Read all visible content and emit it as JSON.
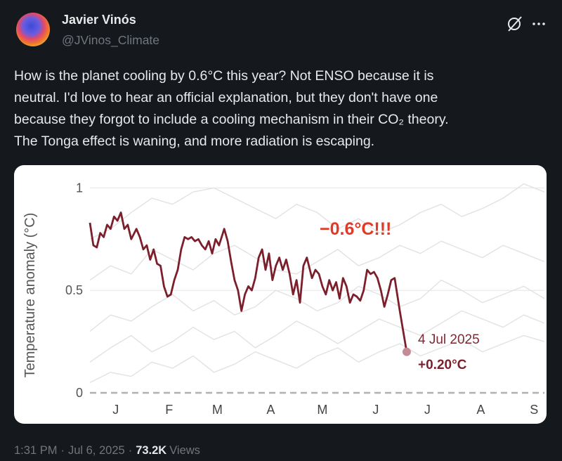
{
  "post": {
    "author_name": "Javier Vinós",
    "handle": "@JVinos_Climate",
    "text_lines": [
      "How is the planet cooling by 0.6°C this year? Not ENSO because it is",
      "neutral. I'd love to hear an official explanation, but they don't have one",
      "because they forgot to include a cooling mechanism in their CO₂ theory.",
      "The Tonga effect is waning, and more radiation is escaping."
    ],
    "time": "1:31 PM",
    "separator": "·",
    "date": "Jul 6, 2025",
    "views": "73.2K",
    "views_label": "Views"
  },
  "chart_data": {
    "type": "line",
    "y_label": "Temperature anomaly (°C)",
    "xlim": [
      1,
      265
    ],
    "xticks": [
      {
        "value": 16,
        "label": "J"
      },
      {
        "value": 47,
        "label": "F"
      },
      {
        "value": 75,
        "label": "M"
      },
      {
        "value": 106,
        "label": "A"
      },
      {
        "value": 136,
        "label": "M"
      },
      {
        "value": 167,
        "label": "J"
      },
      {
        "value": 197,
        "label": "J"
      },
      {
        "value": 228,
        "label": "A"
      },
      {
        "value": 259,
        "label": "S"
      }
    ],
    "ylim": [
      0,
      1.07
    ],
    "yticks": [
      0,
      0.5,
      1
    ],
    "grid": true,
    "annotations": [
      "−0.6°C!!!",
      "4 Jul 2025",
      "+0.20°C"
    ],
    "series": [
      {
        "color": "#e2e2e2",
        "x": [
          1,
          13,
          25,
          37,
          49,
          61,
          73,
          85,
          97,
          109,
          121,
          133,
          145,
          157,
          169,
          181,
          193,
          205,
          217,
          229,
          241,
          253,
          265
        ],
        "values": [
          0.75,
          0.8,
          0.88,
          0.95,
          0.92,
          0.98,
          1.0,
          0.95,
          0.9,
          0.85,
          0.92,
          0.88,
          0.8,
          0.85,
          0.78,
          0.82,
          0.88,
          0.92,
          0.86,
          0.9,
          0.95,
          1.02,
          0.98
        ]
      },
      {
        "color": "#e2e2e2",
        "x": [
          1,
          13,
          25,
          37,
          49,
          61,
          73,
          85,
          97,
          109,
          121,
          133,
          145,
          157,
          169,
          181,
          193,
          205,
          217,
          229,
          241,
          253,
          265
        ],
        "values": [
          0.55,
          0.62,
          0.58,
          0.7,
          0.65,
          0.6,
          0.68,
          0.72,
          0.66,
          0.6,
          0.58,
          0.64,
          0.7,
          0.62,
          0.66,
          0.72,
          0.68,
          0.74,
          0.7,
          0.66,
          0.72,
          0.68,
          0.64
        ]
      },
      {
        "color": "#e2e2e2",
        "x": [
          1,
          13,
          25,
          37,
          49,
          61,
          73,
          85,
          97,
          109,
          121,
          133,
          145,
          157,
          169,
          181,
          193,
          205,
          217,
          229,
          241,
          253,
          265
        ],
        "values": [
          0.3,
          0.38,
          0.35,
          0.42,
          0.48,
          0.4,
          0.45,
          0.38,
          0.42,
          0.5,
          0.46,
          0.4,
          0.44,
          0.52,
          0.48,
          0.42,
          0.46,
          0.55,
          0.5,
          0.44,
          0.48,
          0.52,
          0.46
        ]
      },
      {
        "color": "#e2e2e2",
        "x": [
          1,
          13,
          25,
          37,
          49,
          61,
          73,
          85,
          97,
          109,
          121,
          133,
          145,
          157,
          169,
          181,
          193,
          205,
          217,
          229,
          241,
          253,
          265
        ],
        "values": [
          0.15,
          0.22,
          0.28,
          0.2,
          0.25,
          0.32,
          0.26,
          0.3,
          0.22,
          0.28,
          0.35,
          0.3,
          0.24,
          0.3,
          0.36,
          0.32,
          0.28,
          0.34,
          0.4,
          0.36,
          0.32,
          0.38,
          0.34
        ]
      },
      {
        "color": "#e2e2e2",
        "x": [
          1,
          13,
          25,
          37,
          49,
          61,
          73,
          85,
          97,
          109,
          121,
          133,
          145,
          157,
          169,
          181,
          193,
          205,
          217,
          229,
          241,
          253,
          265
        ],
        "values": [
          0.05,
          0.1,
          0.08,
          0.15,
          0.12,
          0.18,
          0.1,
          0.14,
          0.2,
          0.16,
          0.12,
          0.18,
          0.22,
          0.15,
          0.2,
          0.24,
          0.18,
          0.22,
          0.26,
          0.2,
          0.24,
          0.28,
          0.25
        ]
      },
      {
        "color": "#7c1f2c",
        "x": [
          1,
          3,
          5,
          7,
          9,
          11,
          13,
          15,
          17,
          19,
          21,
          23,
          25,
          28,
          30,
          32,
          34,
          36,
          38,
          40,
          42,
          44,
          46,
          48,
          50,
          52,
          54,
          56,
          58,
          60,
          62,
          64,
          66,
          68,
          70,
          72,
          74,
          76,
          79,
          81,
          83,
          85,
          87,
          89,
          91,
          93,
          95,
          97,
          99,
          101,
          103,
          105,
          107,
          109,
          111,
          113,
          115,
          117,
          119,
          121,
          123,
          125,
          127,
          130,
          132,
          134,
          136,
          138,
          140,
          142,
          144,
          146,
          148,
          150,
          152,
          154,
          156,
          158,
          160,
          162,
          164,
          166,
          168,
          170,
          172,
          174,
          176,
          178,
          181,
          183,
          185
        ],
        "values": [
          0.83,
          0.72,
          0.71,
          0.78,
          0.76,
          0.82,
          0.8,
          0.86,
          0.84,
          0.88,
          0.8,
          0.82,
          0.75,
          0.8,
          0.76,
          0.7,
          0.72,
          0.65,
          0.7,
          0.63,
          0.62,
          0.52,
          0.47,
          0.48,
          0.55,
          0.6,
          0.7,
          0.76,
          0.75,
          0.76,
          0.74,
          0.75,
          0.72,
          0.7,
          0.74,
          0.68,
          0.75,
          0.72,
          0.8,
          0.74,
          0.64,
          0.55,
          0.5,
          0.4,
          0.48,
          0.52,
          0.5,
          0.56,
          0.66,
          0.7,
          0.6,
          0.68,
          0.55,
          0.62,
          0.66,
          0.6,
          0.65,
          0.58,
          0.48,
          0.55,
          0.44,
          0.62,
          0.66,
          0.56,
          0.6,
          0.58,
          0.52,
          0.48,
          0.55,
          0.5,
          0.54,
          0.46,
          0.56,
          0.52,
          0.44,
          0.48,
          0.47,
          0.45,
          0.5,
          0.6,
          0.58,
          0.59,
          0.56,
          0.5,
          0.42,
          0.48,
          0.55,
          0.56,
          0.4,
          0.3,
          0.2
        ]
      }
    ]
  }
}
